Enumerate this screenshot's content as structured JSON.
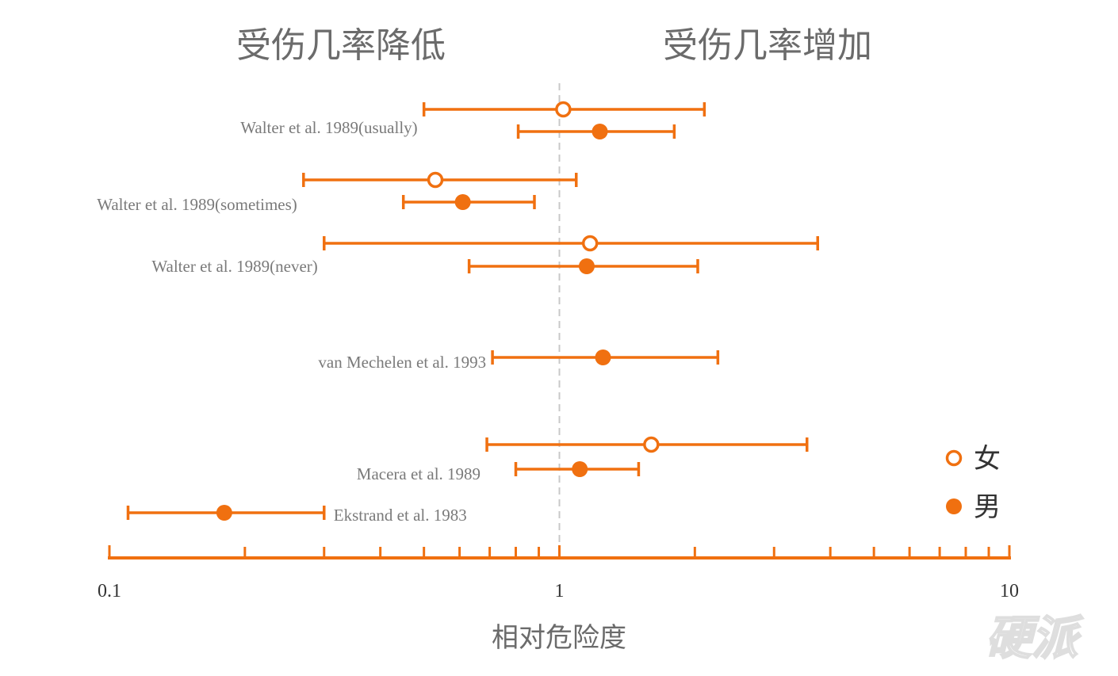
{
  "header": {
    "left_label": "受伤几率降低",
    "right_label": "受伤几率增加"
  },
  "watermark": "硬派",
  "legend": [
    {
      "label": "女",
      "marker": "open-circle"
    },
    {
      "label": "男",
      "marker": "filled-circle"
    }
  ],
  "colors": {
    "accent": "#f07010",
    "reference_line": "#c8c8c8",
    "label_text": "#7a7a7a"
  },
  "chart_data": {
    "type": "forest",
    "title": "",
    "xlabel": "相对危险度",
    "ylabel": "",
    "x_scale": "log",
    "xlim": [
      0.1,
      10
    ],
    "x_ticks": [
      {
        "value": 0.1,
        "label": "0.1"
      },
      {
        "value": 1,
        "label": "1"
      },
      {
        "value": 10,
        "label": "10"
      }
    ],
    "reference_value": 1,
    "grid": false,
    "legend_position": "bottom-right",
    "studies": [
      {
        "name": "Walter et al. 1989(usually)",
        "estimates": [
          {
            "sex": "女",
            "marker": "open-circle",
            "rr": 1.02,
            "lower": 0.5,
            "upper": 2.1
          },
          {
            "sex": "男",
            "marker": "filled-circle",
            "rr": 1.23,
            "lower": 0.81,
            "upper": 1.8
          }
        ]
      },
      {
        "name": "Walter et al. 1989(sometimes)",
        "estimates": [
          {
            "sex": "女",
            "marker": "open-circle",
            "rr": 0.53,
            "lower": 0.27,
            "upper": 1.09
          },
          {
            "sex": "男",
            "marker": "filled-circle",
            "rr": 0.61,
            "lower": 0.45,
            "upper": 0.88
          }
        ]
      },
      {
        "name": "Walter et al. 1989(never)",
        "estimates": [
          {
            "sex": "女",
            "marker": "open-circle",
            "rr": 1.17,
            "lower": 0.3,
            "upper": 3.75
          },
          {
            "sex": "男",
            "marker": "filled-circle",
            "rr": 1.15,
            "lower": 0.63,
            "upper": 2.03
          }
        ]
      },
      {
        "name": "van Mechelen et al. 1993",
        "estimates": [
          {
            "sex": "男",
            "marker": "filled-circle",
            "rr": 1.25,
            "lower": 0.71,
            "upper": 2.25
          }
        ]
      },
      {
        "name": "Macera et al. 1989",
        "estimates": [
          {
            "sex": "女",
            "marker": "open-circle",
            "rr": 1.6,
            "lower": 0.69,
            "upper": 3.55
          },
          {
            "sex": "男",
            "marker": "filled-circle",
            "rr": 1.11,
            "lower": 0.8,
            "upper": 1.5
          }
        ]
      },
      {
        "name": "Ekstrand et al. 1983",
        "estimates": [
          {
            "sex": "男",
            "marker": "filled-circle",
            "rr": 0.18,
            "lower": 0.11,
            "upper": 0.3
          }
        ]
      }
    ]
  }
}
